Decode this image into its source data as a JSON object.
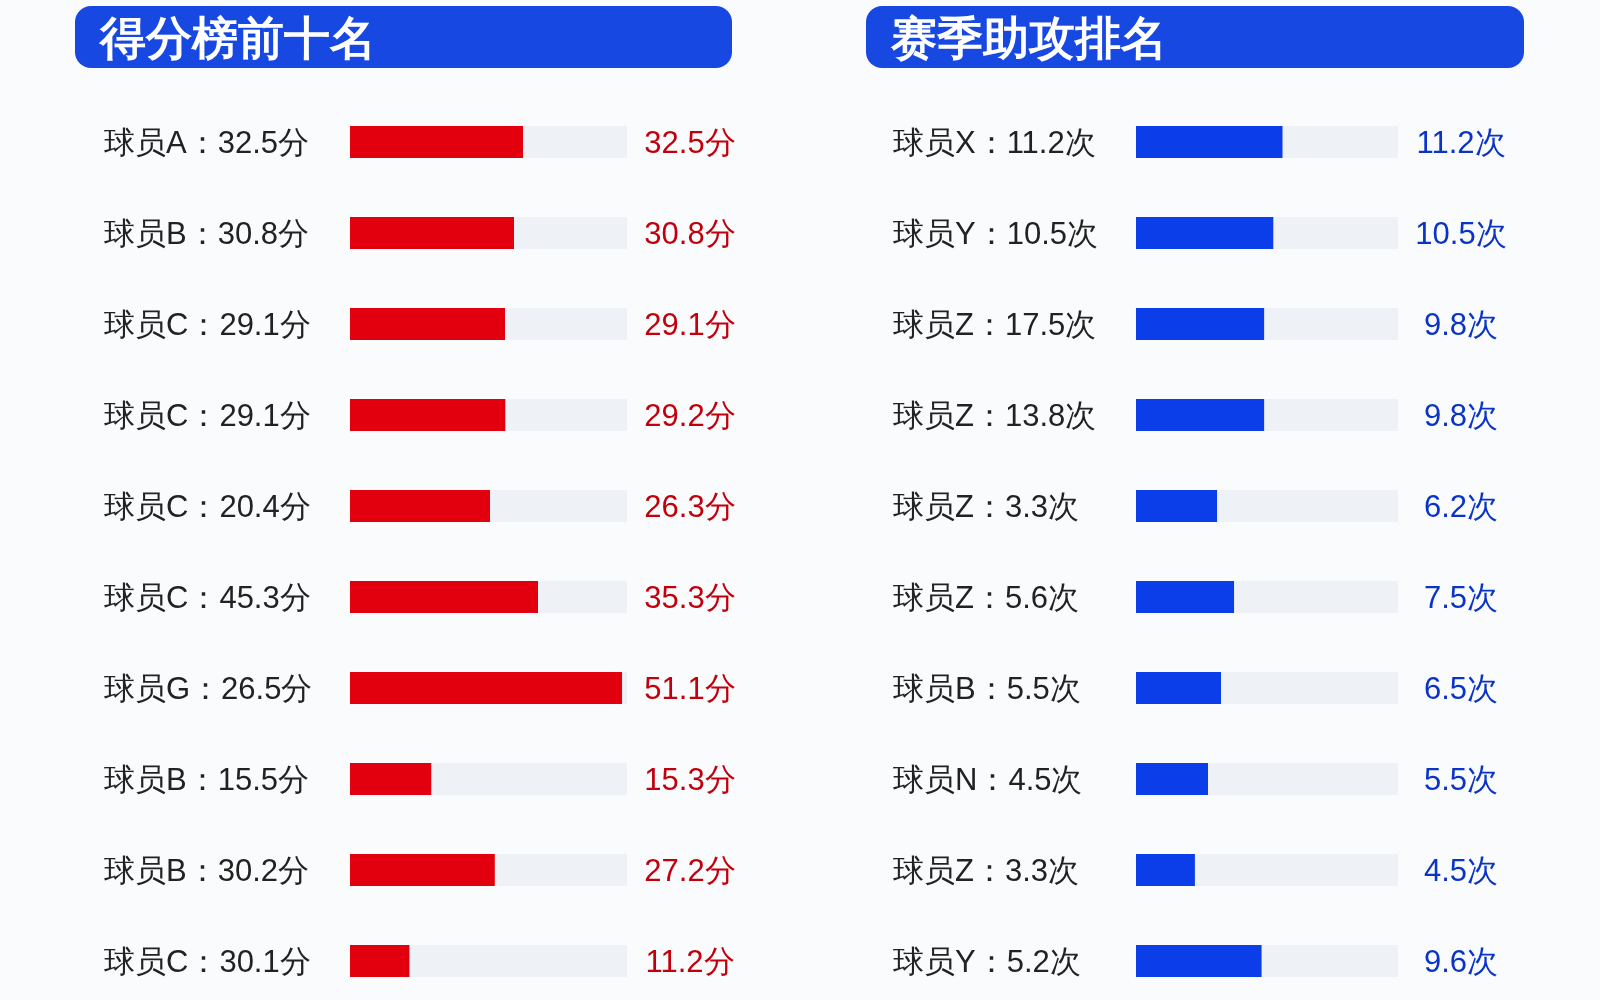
{
  "chart_data": [
    {
      "type": "bar",
      "orientation": "horizontal",
      "stacked": true,
      "title": "得分榜前十名",
      "categories": [
        "球员A：32.5分",
        "球员B：30.8分",
        "球员C：29.1分",
        "球员C：29.1分",
        "球员C：20.4分",
        "球员C：45.3分",
        "球员G：26.5分",
        "球员B：15.5分",
        "球员B：30.2分",
        "球员C：30.1分"
      ],
      "series": [
        {
          "color": "#e3000e",
          "values": [
            32.5,
            30.8,
            29.1,
            29.2,
            26.3,
            35.3,
            51.1,
            15.3,
            27.2,
            11.2
          ],
          "value_labels": [
            "32.5分",
            "30.8分",
            "29.1分",
            "29.2分",
            "26.3分",
            "35.3分",
            "51.1分",
            "15.3分",
            "27.2分",
            "11.2分"
          ]
        },
        {
          "color": "#eef1f6",
          "values": [
            19.5,
            21.2,
            22.9,
            22.8,
            25.7,
            16.7,
            0.9,
            36.7,
            24.8,
            40.8
          ]
        }
      ]
    },
    {
      "type": "bar",
      "orientation": "horizontal",
      "stacked": true,
      "title": "赛季助攻排名",
      "categories": [
        "球员X：11.2次",
        "球员Y：10.5次",
        "球员Z：17.5次",
        "球员Z：13.8次",
        "球员Z：3.3次",
        "球员Z：5.6次",
        "球员B：5.5次",
        "球员N：4.5次",
        "球员Z：3.3次",
        "球员Y：5.2次"
      ],
      "series": [
        {
          "color": "#0b3de9",
          "values": [
            11.2,
            10.5,
            9.8,
            9.8,
            6.2,
            7.5,
            6.5,
            5.5,
            4.5,
            9.6
          ],
          "value_labels": [
            "11.2次",
            "10.5次",
            "9.8次",
            "9.8次",
            "6.2次",
            "7.5次",
            "6.5次",
            "5.5次",
            "4.5次",
            "9.6次"
          ]
        },
        {
          "color": "#eef1f6",
          "values": [
            8.8,
            9.5,
            10.2,
            10.2,
            13.8,
            12.5,
            13.5,
            14.5,
            15.5,
            10.4
          ]
        }
      ]
    }
  ]
}
